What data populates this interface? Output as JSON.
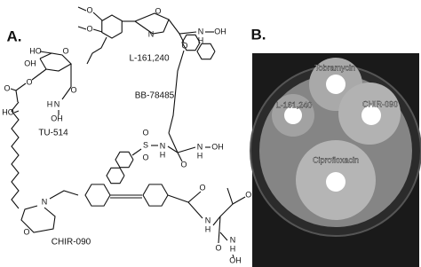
{
  "panel_a": {
    "label": "A.",
    "compounds": [
      {
        "name": "L-161,240",
        "atoms": [
          "O",
          "O",
          "O",
          "N",
          "O",
          "N",
          "H",
          "OH"
        ]
      },
      {
        "name": "TU-514",
        "atoms": [
          "HO",
          "OH",
          "O",
          "O",
          "O",
          "HO",
          "O",
          "N",
          "H",
          "OH"
        ]
      },
      {
        "name": "BB-78485",
        "atoms": [
          "S",
          "O",
          "O",
          "N",
          "H",
          "O",
          "N",
          "H",
          "OH"
        ]
      },
      {
        "name": "CHIR-090",
        "atoms": [
          "N",
          "O",
          "O",
          "N",
          "H",
          "OH",
          "O",
          "N",
          "H",
          "OH"
        ]
      }
    ]
  },
  "panel_b": {
    "label": "B.",
    "zones": [
      "Tobramycin",
      "L-161,240",
      "CHIR-090",
      "Ciprofloxacin"
    ]
  }
}
